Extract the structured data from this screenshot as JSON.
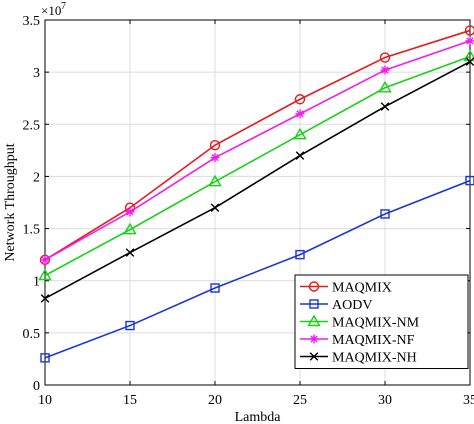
{
  "chart_data": {
    "type": "line",
    "xlabel": "Lambda",
    "ylabel": "Network Throughput",
    "y_multiplier_label": "×10",
    "y_multiplier_exponent": "7",
    "x": [
      10,
      15,
      20,
      25,
      30,
      35
    ],
    "xlim": [
      10,
      35
    ],
    "ylim": [
      0,
      3.5
    ],
    "x_ticks": [
      "10",
      "15",
      "20",
      "25",
      "30",
      "35"
    ],
    "y_ticks": [
      "0",
      "0.5",
      "1",
      "1.5",
      "2",
      "2.5",
      "3",
      "3.5"
    ],
    "grid": true,
    "legend_position": "bottom-right",
    "series": [
      {
        "name": "MAQMIX",
        "color": "#e8191c",
        "marker": "circle",
        "values": [
          1.2,
          1.7,
          2.3,
          2.74,
          3.14,
          3.4
        ]
      },
      {
        "name": "AODV",
        "color": "#1a34d8",
        "marker": "square",
        "values": [
          0.26,
          0.57,
          0.93,
          1.25,
          1.64,
          1.96
        ]
      },
      {
        "name": "MAQMIX-NM",
        "color": "#17d217",
        "marker": "triangle",
        "values": [
          1.05,
          1.49,
          1.95,
          2.4,
          2.85,
          3.15
        ]
      },
      {
        "name": "MAQMIX-NF",
        "color": "#f21cf2",
        "marker": "star",
        "values": [
          1.2,
          1.66,
          2.18,
          2.6,
          3.02,
          3.3
        ]
      },
      {
        "name": "MAQMIX-NH",
        "color": "#000000",
        "marker": "x",
        "values": [
          0.83,
          1.27,
          1.7,
          2.2,
          2.67,
          3.1
        ]
      }
    ]
  }
}
